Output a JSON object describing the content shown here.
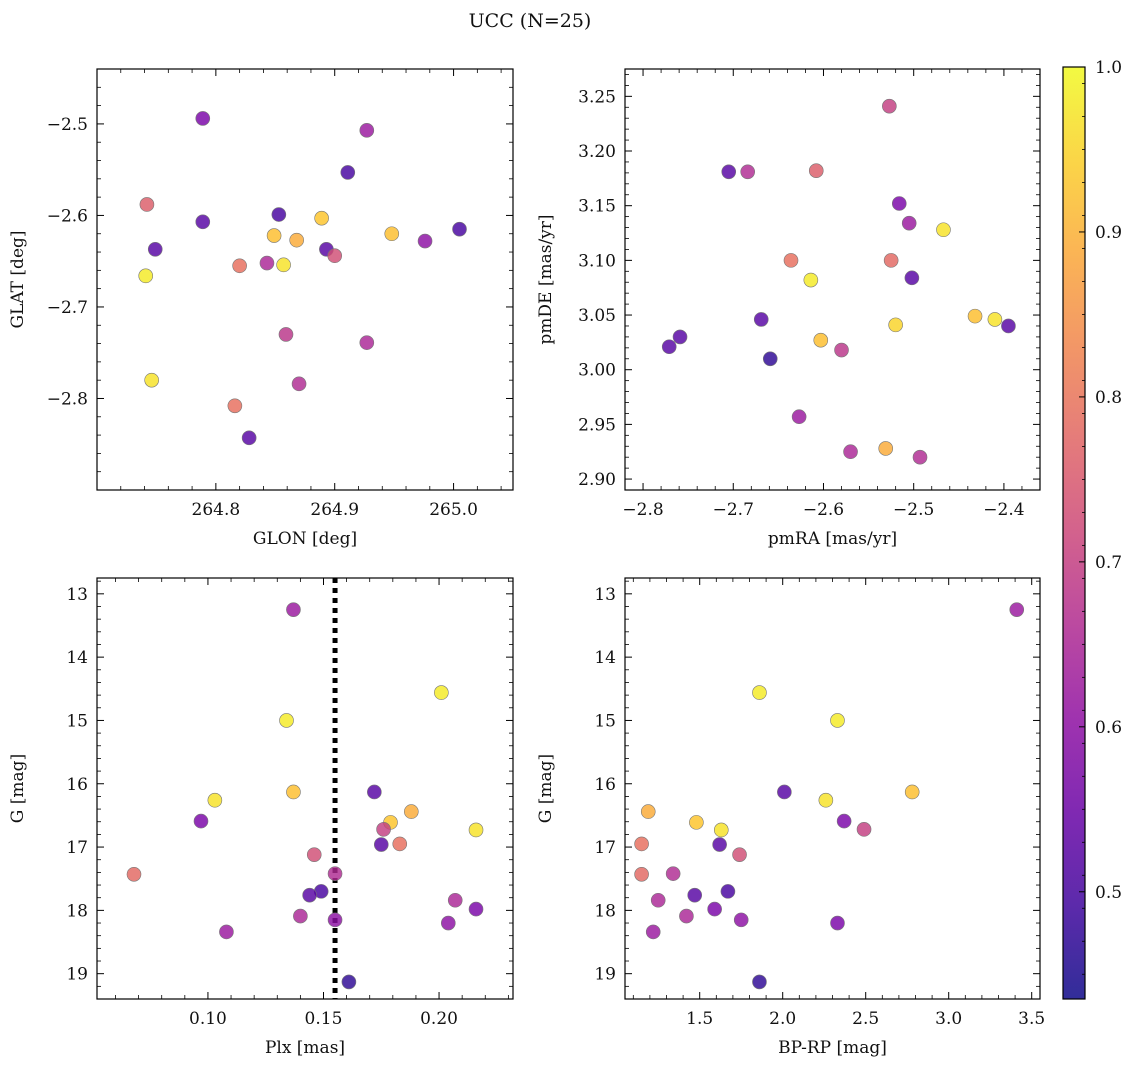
{
  "title": "UCC (N=25)",
  "colorbar": {
    "range": [
      0.435,
      1.0
    ],
    "ticks": [
      0.5,
      0.6,
      0.7,
      0.8,
      0.9,
      1.0
    ],
    "tick_labels": [
      "0.5",
      "0.6",
      "0.7",
      "0.8",
      "0.9",
      "1.0"
    ],
    "colormap": "plasma"
  },
  "chart_data": [
    {
      "type": "scatter",
      "xlabel": "GLON [deg]",
      "ylabel": "GLAT [deg]",
      "xlim": [
        264.7,
        265.05
      ],
      "ylim": [
        -2.9,
        -2.44
      ],
      "xticks": [
        264.8,
        264.9,
        265.0
      ],
      "xtick_labels": [
        "264.8",
        "264.9",
        "265.0"
      ],
      "yticks": [
        -2.8,
        -2.7,
        -2.6,
        -2.5
      ],
      "ytick_labels": [
        "−2.8",
        "−2.7",
        "−2.6",
        "−2.5"
      ],
      "points": [
        {
          "x": 264.789,
          "y": -2.494,
          "c": 0.57
        },
        {
          "x": 264.927,
          "y": -2.507,
          "c": 0.62
        },
        {
          "x": 264.911,
          "y": -2.553,
          "c": 0.5
        },
        {
          "x": 264.742,
          "y": -2.588,
          "c": 0.76
        },
        {
          "x": 264.853,
          "y": -2.599,
          "c": 0.5
        },
        {
          "x": 264.889,
          "y": -2.603,
          "c": 0.93
        },
        {
          "x": 264.789,
          "y": -2.607,
          "c": 0.52
        },
        {
          "x": 265.005,
          "y": -2.615,
          "c": 0.5
        },
        {
          "x": 264.948,
          "y": -2.62,
          "c": 0.92
        },
        {
          "x": 264.849,
          "y": -2.622,
          "c": 0.92
        },
        {
          "x": 264.868,
          "y": -2.627,
          "c": 0.89
        },
        {
          "x": 264.976,
          "y": -2.628,
          "c": 0.6
        },
        {
          "x": 264.749,
          "y": -2.637,
          "c": 0.52
        },
        {
          "x": 264.893,
          "y": -2.637,
          "c": 0.52
        },
        {
          "x": 264.9,
          "y": -2.644,
          "c": 0.73
        },
        {
          "x": 264.843,
          "y": -2.652,
          "c": 0.65
        },
        {
          "x": 264.82,
          "y": -2.655,
          "c": 0.79
        },
        {
          "x": 264.857,
          "y": -2.654,
          "c": 0.97
        },
        {
          "x": 264.741,
          "y": -2.666,
          "c": 0.98
        },
        {
          "x": 264.859,
          "y": -2.73,
          "c": 0.68
        },
        {
          "x": 264.927,
          "y": -2.739,
          "c": 0.65
        },
        {
          "x": 264.746,
          "y": -2.78,
          "c": 0.97
        },
        {
          "x": 264.87,
          "y": -2.784,
          "c": 0.66
        },
        {
          "x": 264.816,
          "y": -2.808,
          "c": 0.79
        },
        {
          "x": 264.828,
          "y": -2.843,
          "c": 0.52
        }
      ]
    },
    {
      "type": "scatter",
      "xlabel": "pmRA [mas/yr]",
      "ylabel": "pmDE [mas/yr]",
      "xlim": [
        -2.82,
        -2.36
      ],
      "ylim": [
        2.89,
        3.275
      ],
      "xticks": [
        -2.8,
        -2.7,
        -2.6,
        -2.5,
        -2.4
      ],
      "xtick_labels": [
        "−2.8",
        "−2.7",
        "−2.6",
        "−2.5",
        "−2.4"
      ],
      "yticks": [
        2.9,
        2.95,
        3.0,
        3.05,
        3.1,
        3.15,
        3.2,
        3.25
      ],
      "ytick_labels": [
        "2.90",
        "2.95",
        "3.00",
        "3.05",
        "3.10",
        "3.15",
        "3.20",
        "3.25"
      ],
      "points": [
        {
          "x": -2.527,
          "y": 3.241,
          "c": 0.7
        },
        {
          "x": -2.705,
          "y": 3.181,
          "c": 0.52
        },
        {
          "x": -2.684,
          "y": 3.181,
          "c": 0.66
        },
        {
          "x": -2.608,
          "y": 3.182,
          "c": 0.76
        },
        {
          "x": -2.516,
          "y": 3.152,
          "c": 0.57
        },
        {
          "x": -2.505,
          "y": 3.134,
          "c": 0.62
        },
        {
          "x": -2.467,
          "y": 3.128,
          "c": 0.97
        },
        {
          "x": -2.636,
          "y": 3.1,
          "c": 0.79
        },
        {
          "x": -2.525,
          "y": 3.1,
          "c": 0.78
        },
        {
          "x": -2.614,
          "y": 3.082,
          "c": 0.98
        },
        {
          "x": -2.502,
          "y": 3.084,
          "c": 0.52
        },
        {
          "x": -2.669,
          "y": 3.046,
          "c": 0.52
        },
        {
          "x": -2.432,
          "y": 3.049,
          "c": 0.92
        },
        {
          "x": -2.41,
          "y": 3.046,
          "c": 0.97
        },
        {
          "x": -2.52,
          "y": 3.041,
          "c": 0.95
        },
        {
          "x": -2.395,
          "y": 3.04,
          "c": 0.52
        },
        {
          "x": -2.759,
          "y": 3.03,
          "c": 0.52
        },
        {
          "x": -2.603,
          "y": 3.027,
          "c": 0.92
        },
        {
          "x": -2.771,
          "y": 3.021,
          "c": 0.52
        },
        {
          "x": -2.58,
          "y": 3.018,
          "c": 0.68
        },
        {
          "x": -2.659,
          "y": 3.01,
          "c": 0.47
        },
        {
          "x": -2.627,
          "y": 2.957,
          "c": 0.62
        },
        {
          "x": -2.57,
          "y": 2.925,
          "c": 0.65
        },
        {
          "x": -2.531,
          "y": 2.928,
          "c": 0.89
        },
        {
          "x": -2.493,
          "y": 2.92,
          "c": 0.66
        }
      ]
    },
    {
      "type": "scatter",
      "xlabel": "Plx [mas]",
      "ylabel": "G [mag]",
      "xlim": [
        0.052,
        0.232
      ],
      "ylim": [
        19.4,
        12.75
      ],
      "xticks": [
        0.1,
        0.15,
        0.2
      ],
      "xtick_labels": [
        "0.10",
        "0.15",
        "0.20"
      ],
      "yticks": [
        13,
        14,
        15,
        16,
        17,
        18,
        19
      ],
      "ytick_labels": [
        "13",
        "14",
        "15",
        "16",
        "17",
        "18",
        "19"
      ],
      "vline": {
        "x": 0.155,
        "style": "dotted",
        "color": "#000000"
      },
      "points": [
        {
          "x": 0.137,
          "y": 13.25,
          "c": 0.62
        },
        {
          "x": 0.201,
          "y": 14.56,
          "c": 0.98
        },
        {
          "x": 0.134,
          "y": 15.0,
          "c": 0.98
        },
        {
          "x": 0.137,
          "y": 16.13,
          "c": 0.92
        },
        {
          "x": 0.172,
          "y": 16.13,
          "c": 0.52
        },
        {
          "x": 0.103,
          "y": 16.26,
          "c": 0.97
        },
        {
          "x": 0.188,
          "y": 16.44,
          "c": 0.89
        },
        {
          "x": 0.097,
          "y": 16.59,
          "c": 0.57
        },
        {
          "x": 0.179,
          "y": 16.61,
          "c": 0.93
        },
        {
          "x": 0.176,
          "y": 16.72,
          "c": 0.7
        },
        {
          "x": 0.216,
          "y": 16.73,
          "c": 0.97
        },
        {
          "x": 0.175,
          "y": 16.96,
          "c": 0.52
        },
        {
          "x": 0.183,
          "y": 16.95,
          "c": 0.79
        },
        {
          "x": 0.146,
          "y": 17.12,
          "c": 0.73
        },
        {
          "x": 0.068,
          "y": 17.43,
          "c": 0.78
        },
        {
          "x": 0.155,
          "y": 17.42,
          "c": 0.66
        },
        {
          "x": 0.149,
          "y": 17.7,
          "c": 0.5
        },
        {
          "x": 0.144,
          "y": 17.76,
          "c": 0.52
        },
        {
          "x": 0.207,
          "y": 17.84,
          "c": 0.65
        },
        {
          "x": 0.216,
          "y": 17.98,
          "c": 0.57
        },
        {
          "x": 0.14,
          "y": 18.09,
          "c": 0.65
        },
        {
          "x": 0.155,
          "y": 18.15,
          "c": 0.6
        },
        {
          "x": 0.204,
          "y": 18.2,
          "c": 0.6
        },
        {
          "x": 0.108,
          "y": 18.34,
          "c": 0.62
        },
        {
          "x": 0.161,
          "y": 19.13,
          "c": 0.47
        }
      ]
    },
    {
      "type": "scatter",
      "xlabel": "BP-RP [mag]",
      "ylabel": "G [mag]",
      "xlim": [
        1.05,
        3.55
      ],
      "ylim": [
        19.4,
        12.75
      ],
      "xticks": [
        1.5,
        2.0,
        2.5,
        3.0,
        3.5
      ],
      "xtick_labels": [
        "1.5",
        "2.0",
        "2.5",
        "3.0",
        "3.5"
      ],
      "yticks": [
        13,
        14,
        15,
        16,
        17,
        18,
        19
      ],
      "ytick_labels": [
        "13",
        "14",
        "15",
        "16",
        "17",
        "18",
        "19"
      ],
      "points": [
        {
          "x": 3.41,
          "y": 13.25,
          "c": 0.62
        },
        {
          "x": 1.86,
          "y": 14.56,
          "c": 0.98
        },
        {
          "x": 2.33,
          "y": 15.0,
          "c": 0.98
        },
        {
          "x": 2.01,
          "y": 16.13,
          "c": 0.52
        },
        {
          "x": 2.78,
          "y": 16.13,
          "c": 0.92
        },
        {
          "x": 2.26,
          "y": 16.26,
          "c": 0.97
        },
        {
          "x": 1.19,
          "y": 16.44,
          "c": 0.89
        },
        {
          "x": 2.37,
          "y": 16.59,
          "c": 0.57
        },
        {
          "x": 1.48,
          "y": 16.61,
          "c": 0.93
        },
        {
          "x": 1.63,
          "y": 16.73,
          "c": 0.97
        },
        {
          "x": 2.49,
          "y": 16.72,
          "c": 0.7
        },
        {
          "x": 1.15,
          "y": 16.95,
          "c": 0.79
        },
        {
          "x": 1.62,
          "y": 16.96,
          "c": 0.52
        },
        {
          "x": 1.74,
          "y": 17.12,
          "c": 0.73
        },
        {
          "x": 1.15,
          "y": 17.43,
          "c": 0.78
        },
        {
          "x": 1.34,
          "y": 17.42,
          "c": 0.66
        },
        {
          "x": 1.67,
          "y": 17.7,
          "c": 0.5
        },
        {
          "x": 1.47,
          "y": 17.76,
          "c": 0.52
        },
        {
          "x": 1.25,
          "y": 17.84,
          "c": 0.65
        },
        {
          "x": 1.59,
          "y": 17.98,
          "c": 0.57
        },
        {
          "x": 1.42,
          "y": 18.09,
          "c": 0.65
        },
        {
          "x": 1.75,
          "y": 18.15,
          "c": 0.6
        },
        {
          "x": 2.33,
          "y": 18.2,
          "c": 0.57
        },
        {
          "x": 1.22,
          "y": 18.34,
          "c": 0.62
        },
        {
          "x": 1.86,
          "y": 19.13,
          "c": 0.47
        }
      ]
    }
  ]
}
